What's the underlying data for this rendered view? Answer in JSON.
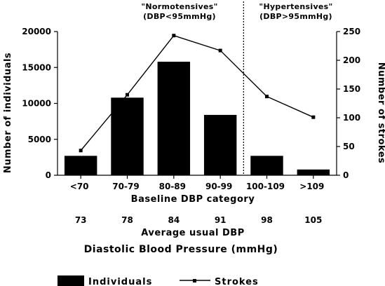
{
  "chart_data": {
    "type": "bar",
    "categories": [
      "<70",
      "70-79",
      "80-89",
      "90-99",
      "100-109",
      ">109"
    ],
    "series": [
      {
        "name": "Individuals",
        "kind": "bar",
        "axis": "left",
        "values": [
          2700,
          10800,
          15800,
          8400,
          2700,
          800
        ]
      },
      {
        "name": "Strokes",
        "kind": "line",
        "axis": "right",
        "values": [
          43,
          140,
          243,
          217,
          137,
          101
        ]
      }
    ],
    "average_usual_dbp": [
      "73",
      "78",
      "84",
      "91",
      "98",
      "105"
    ],
    "xlabel": "Baseline DBP category",
    "xlabel_secondary": "Average usual DBP",
    "xlabel_main": "Diastolic Blood Pressure (mmHg)",
    "ylabel_left": "Number of individuals",
    "ylabel_right": "Number of strokes",
    "ylim_left": [
      0,
      20000
    ],
    "ylim_right": [
      0,
      250
    ],
    "yticks_left": [
      "0",
      "5000",
      "10000",
      "15000",
      "20000"
    ],
    "yticks_right": [
      "0",
      "50",
      "100",
      "150",
      "200",
      "250"
    ],
    "annotations": {
      "normotensive_line1": "\"Normotensives\"",
      "normotensive_line2": "(DBP<95mmHg)",
      "hypertensive_line1": "\"Hypertensives\"",
      "hypertensive_line2": "(DBP>95mmHg)"
    },
    "threshold_between": [
      "90-99",
      "100-109"
    ],
    "grid": false,
    "legend_position": "bottom",
    "colors": {
      "bars": "#000000",
      "line": "#000000",
      "background": "#ffffff"
    }
  }
}
